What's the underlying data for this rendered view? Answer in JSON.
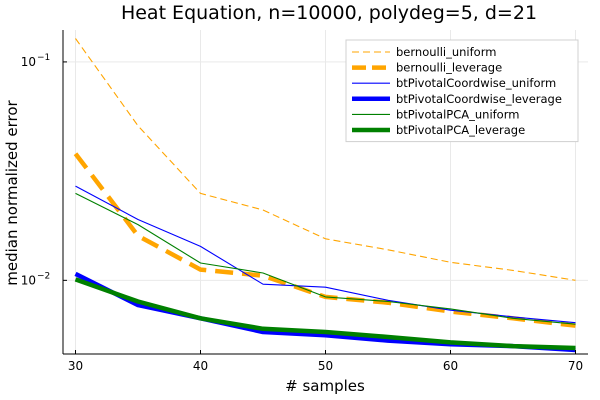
{
  "chart_data": {
    "type": "line",
    "title": "Heat Equation, n=10000, polydeg=5, d=21",
    "xlabel": "# samples",
    "ylabel": "median normalized error",
    "x": [
      30,
      35,
      40,
      45,
      50,
      55,
      60,
      65,
      70
    ],
    "xlim": [
      29,
      71
    ],
    "ylim": [
      0.0046,
      0.14
    ],
    "yscale": "log",
    "x_ticks": [
      30,
      40,
      50,
      60,
      70
    ],
    "y_ticks": [
      {
        "value": 0.01,
        "base": "10",
        "exp": "−2"
      },
      {
        "value": 0.1,
        "base": "10",
        "exp": "−1"
      }
    ],
    "grid": true,
    "legend_position": "top-right",
    "series": [
      {
        "name": "bernoulli_uniform",
        "color": "#ffa500",
        "style": "dashed",
        "weight": "thin",
        "values": [
          0.128,
          0.051,
          0.025,
          0.021,
          0.0155,
          0.0138,
          0.0121,
          0.0111,
          0.01
        ]
      },
      {
        "name": "bernoulli_leverage",
        "color": "#ffa500",
        "style": "dashed",
        "weight": "thick",
        "values": [
          0.038,
          0.016,
          0.0112,
          0.0105,
          0.0084,
          0.0079,
          0.0072,
          0.0067,
          0.0062
        ]
      },
      {
        "name": "btPivotalCoordwise_uniform",
        "color": "#0000ff",
        "style": "solid",
        "weight": "thin",
        "values": [
          0.027,
          0.019,
          0.0143,
          0.0096,
          0.0093,
          0.0081,
          0.0073,
          0.0068,
          0.0064
        ]
      },
      {
        "name": "btPivotalCoordwise_leverage",
        "color": "#0000ff",
        "style": "solid",
        "weight": "thick",
        "values": [
          0.0107,
          0.0077,
          0.0067,
          0.0058,
          0.0056,
          0.0053,
          0.0051,
          0.005,
          0.0048
        ]
      },
      {
        "name": "btPivotalPCA_uniform",
        "color": "#008000",
        "style": "solid",
        "weight": "thin",
        "values": [
          0.025,
          0.018,
          0.012,
          0.0108,
          0.0084,
          0.008,
          0.0074,
          0.0067,
          0.0063
        ]
      },
      {
        "name": "btPivotalPCA_leverage",
        "color": "#008000",
        "style": "solid",
        "weight": "thick",
        "values": [
          0.0101,
          0.008,
          0.0067,
          0.006,
          0.0058,
          0.0055,
          0.0052,
          0.005,
          0.0049
        ]
      }
    ]
  }
}
